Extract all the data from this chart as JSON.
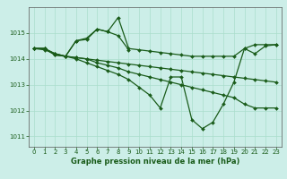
{
  "background_color": "#cceee8",
  "grid_color": "#aaddcc",
  "line_color": "#1a5c1a",
  "marker_color": "#1a5c1a",
  "xlabel": "Graphe pression niveau de la mer (hPa)",
  "xlim": [
    -0.5,
    23.5
  ],
  "ylim": [
    1010.6,
    1016.0
  ],
  "yticks": [
    1011,
    1012,
    1013,
    1014,
    1015
  ],
  "xticks": [
    0,
    1,
    2,
    3,
    4,
    5,
    6,
    7,
    8,
    9,
    10,
    11,
    12,
    13,
    14,
    15,
    16,
    17,
    18,
    19,
    20,
    21,
    22,
    23
  ],
  "series": [
    {
      "x": [
        0,
        1,
        2,
        3,
        4,
        5,
        6,
        7,
        8,
        9,
        10,
        11,
        12,
        13,
        14,
        15,
        16,
        17,
        18,
        19,
        20,
        21,
        22,
        23
      ],
      "y": [
        1014.4,
        1014.4,
        1014.2,
        1014.1,
        1014.7,
        1014.8,
        1015.15,
        1015.05,
        1015.6,
        1014.4,
        1014.35,
        1014.3,
        1014.25,
        1014.2,
        1014.15,
        1014.1,
        1014.1,
        1014.1,
        1014.1,
        1014.1,
        1014.4,
        1014.55,
        1014.55,
        1014.55
      ]
    },
    {
      "x": [
        0,
        1,
        2,
        3,
        4,
        5,
        6,
        7,
        8,
        9,
        10,
        11,
        12,
        13,
        14,
        15,
        16,
        17,
        18,
        19,
        20,
        21,
        22,
        23
      ],
      "y": [
        1014.4,
        1014.4,
        1014.15,
        1014.1,
        1014.05,
        1014.0,
        1013.95,
        1013.9,
        1013.85,
        1013.8,
        1013.75,
        1013.7,
        1013.65,
        1013.6,
        1013.55,
        1013.5,
        1013.45,
        1013.4,
        1013.35,
        1013.3,
        1013.25,
        1013.2,
        1013.15,
        1013.1
      ]
    },
    {
      "x": [
        0,
        1,
        2,
        3,
        4,
        5,
        6,
        7,
        8,
        9,
        10,
        11,
        12,
        13,
        14,
        15,
        16,
        17,
        18,
        19,
        20,
        21,
        22,
        23
      ],
      "y": [
        1014.4,
        1014.4,
        1014.15,
        1014.1,
        1014.05,
        1014.0,
        1013.85,
        1013.75,
        1013.65,
        1013.5,
        1013.4,
        1013.3,
        1013.2,
        1013.1,
        1013.0,
        1012.9,
        1012.8,
        1012.7,
        1012.6,
        1012.5,
        1012.25,
        1012.1,
        1012.1,
        1012.1
      ]
    },
    {
      "x": [
        0,
        1,
        2,
        3,
        4,
        5,
        6,
        7,
        8,
        9,
        10,
        11,
        12,
        13,
        14,
        15,
        16,
        17,
        18,
        19,
        20,
        21,
        22,
        23
      ],
      "y": [
        1014.4,
        1014.4,
        1014.2,
        1014.1,
        1014.0,
        1013.85,
        1013.7,
        1013.55,
        1013.4,
        1013.2,
        1012.9,
        1012.6,
        1012.1,
        1013.3,
        1013.3,
        1011.65,
        1011.3,
        1011.55,
        1012.25,
        1013.1,
        1014.4,
        1014.2,
        1014.5,
        1014.55
      ]
    },
    {
      "x": [
        0,
        1,
        2,
        3,
        4,
        5,
        6,
        7,
        8,
        9
      ],
      "y": [
        1014.4,
        1014.35,
        1014.2,
        1014.1,
        1014.7,
        1014.75,
        1015.15,
        1015.05,
        1014.9,
        1014.35
      ]
    }
  ],
  "marker_size": 2.0,
  "linewidth": 0.9,
  "xlabel_fontsize": 6,
  "tick_fontsize": 5,
  "tick_color": "#1a5c1a",
  "axis_color": "#555555",
  "xlabel_color": "#1a5c1a"
}
